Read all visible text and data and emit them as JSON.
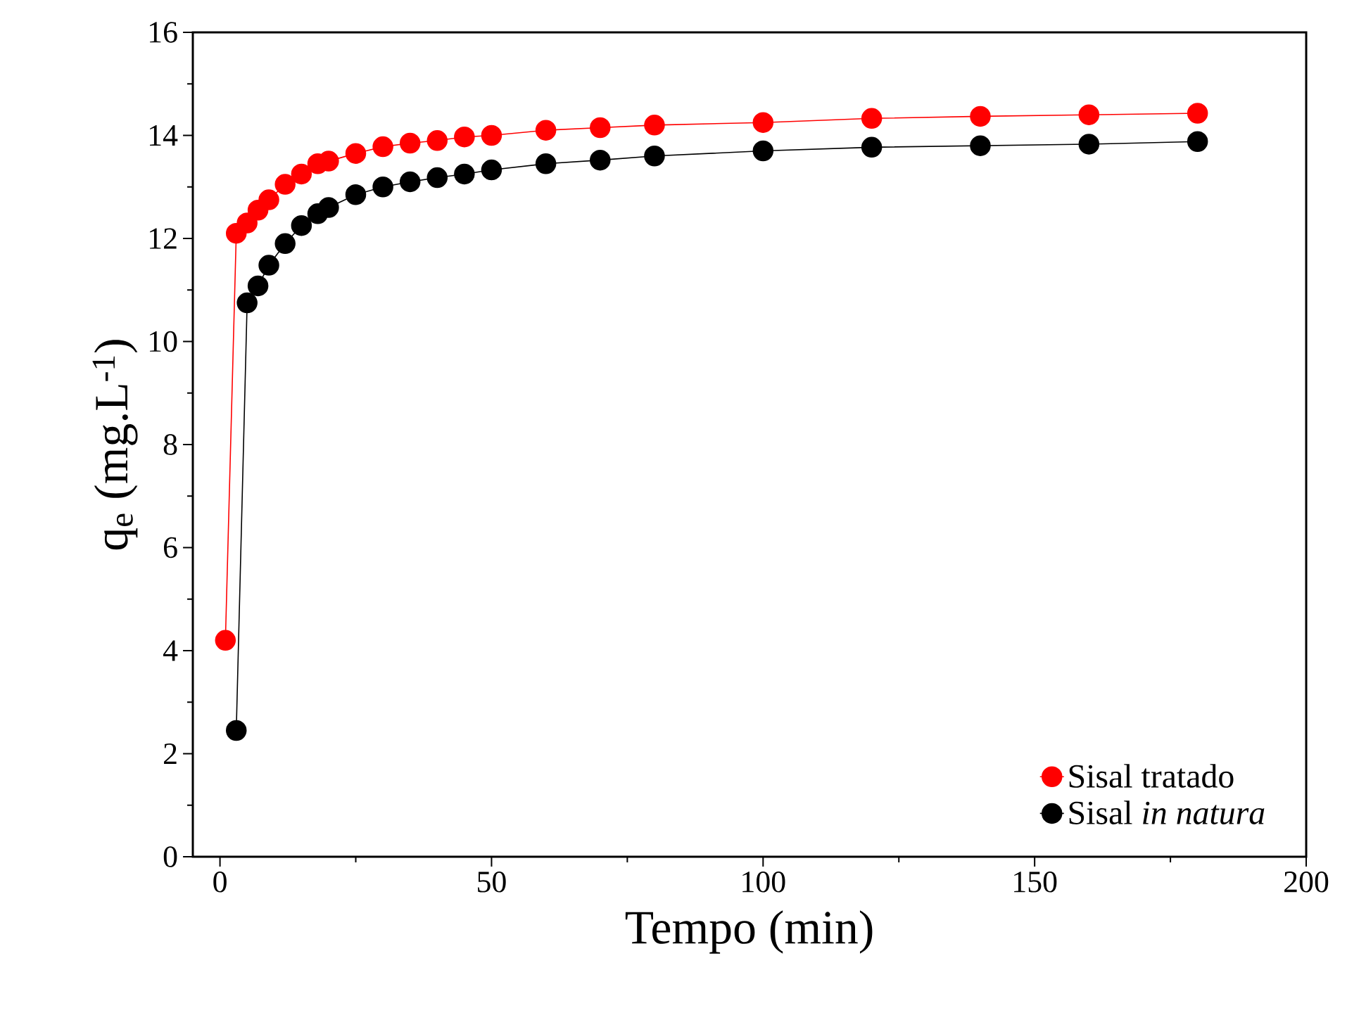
{
  "chart_data": {
    "type": "line",
    "xlabel": "Tempo (min)",
    "ylabel": "q$_{e}$ (mg.L$^{-1}$)",
    "xlim": [
      -5,
      200
    ],
    "ylim": [
      0,
      16
    ],
    "xticks": [
      0,
      50,
      100,
      150,
      200
    ],
    "yticks": [
      0,
      2,
      4,
      6,
      8,
      10,
      12,
      14,
      16
    ],
    "marker": "circle",
    "line_style": "solid",
    "legend": "bottom right",
    "grid": false,
    "series": [
      {
        "name": "Sisal tratado",
        "color": "#ff0000",
        "x": [
          1,
          3,
          5,
          7,
          9,
          12,
          15,
          18,
          20,
          25,
          30,
          35,
          40,
          45,
          50,
          60,
          70,
          80,
          100,
          120,
          140,
          160,
          180
        ],
        "values": [
          4.2,
          12.1,
          12.3,
          12.55,
          12.75,
          13.05,
          13.25,
          13.45,
          13.5,
          13.65,
          13.78,
          13.85,
          13.9,
          13.97,
          14.0,
          14.1,
          14.15,
          14.2,
          14.25,
          14.33,
          14.37,
          14.4,
          14.43
        ]
      },
      {
        "name": "Sisal *in natura*",
        "color": "#000000",
        "x": [
          3,
          5,
          7,
          9,
          12,
          15,
          18,
          20,
          25,
          30,
          35,
          40,
          45,
          50,
          60,
          70,
          80,
          100,
          120,
          140,
          160,
          180
        ],
        "values": [
          2.45,
          10.75,
          11.08,
          11.48,
          11.9,
          12.25,
          12.48,
          12.6,
          12.85,
          13.0,
          13.1,
          13.18,
          13.25,
          13.33,
          13.45,
          13.52,
          13.6,
          13.7,
          13.77,
          13.8,
          13.83,
          13.88
        ]
      }
    ]
  }
}
